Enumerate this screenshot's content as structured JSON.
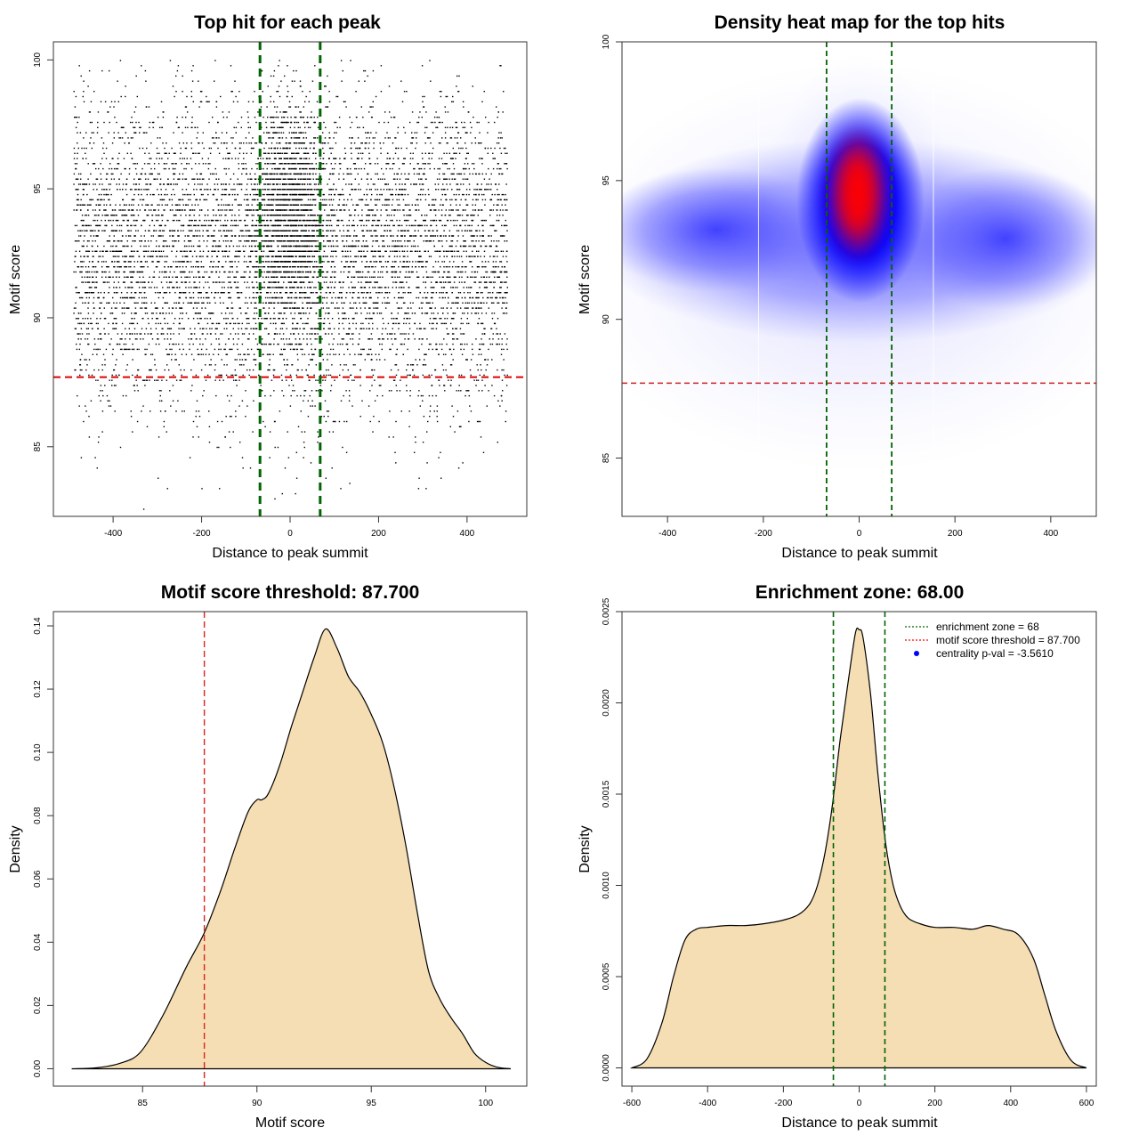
{
  "chart_data": [
    {
      "type": "scatter",
      "title": "Top hit for each peak",
      "xlabel": "Distance to peak summit",
      "ylabel": "Motif score",
      "xlim": [
        -535,
        535
      ],
      "ylim": [
        82.3,
        100.7
      ],
      "xticks": [
        -400,
        -200,
        0,
        200,
        400
      ],
      "yticks": [
        85,
        90,
        95,
        100
      ],
      "threshold": 87.7,
      "zone": 68,
      "n_points": 9000
    },
    {
      "type": "heatmap",
      "title": "Density heat map for the top hits",
      "xlabel": "Distance to peak summit",
      "ylabel": "Motif score",
      "xlim": [
        -495,
        495
      ],
      "ylim": [
        82.9,
        100
      ],
      "xticks": [
        -400,
        -200,
        0,
        200,
        400
      ],
      "yticks": [
        85,
        90,
        95,
        100
      ],
      "threshold": 87.7,
      "zone": 68,
      "white_lines_x": [
        -210,
        155
      ],
      "colors": {
        "low": "#ffffff",
        "mid": "#0000ff",
        "high": "#ff0000"
      }
    },
    {
      "type": "area",
      "title": "Motif score threshold: 87.700",
      "xlabel": "Motif score",
      "ylabel": "Density",
      "xlim": [
        81.1,
        101.8
      ],
      "ylim": [
        -0.0055,
        0.1445
      ],
      "xticks": [
        85,
        90,
        95,
        100
      ],
      "yticks": [
        0.0,
        0.02,
        0.04,
        0.06,
        0.08,
        0.1,
        0.12,
        0.14
      ],
      "ytick_labels": [
        "0.00",
        "0.02",
        "0.04",
        "0.06",
        "0.08",
        "0.10",
        "0.12",
        "0.14"
      ],
      "threshold": 87.7,
      "fill": "#f5deb3",
      "x": [
        81.9,
        83.0,
        84.0,
        84.9,
        85.9,
        86.9,
        87.7,
        88.4,
        89.0,
        89.6,
        90.0,
        90.2,
        90.5,
        91.0,
        91.5,
        92.0,
        92.5,
        93.0,
        93.5,
        94.0,
        94.5,
        95.0,
        95.5,
        96.0,
        96.5,
        97.0,
        97.5,
        98.0,
        98.5,
        99.0,
        99.5,
        100.0,
        100.5,
        101.1
      ],
      "values": [
        0.0,
        0.0003,
        0.0017,
        0.0052,
        0.017,
        0.032,
        0.043,
        0.056,
        0.069,
        0.081,
        0.085,
        0.085,
        0.087,
        0.096,
        0.108,
        0.119,
        0.13,
        0.139,
        0.133,
        0.124,
        0.119,
        0.112,
        0.103,
        0.089,
        0.071,
        0.05,
        0.031,
        0.022,
        0.016,
        0.011,
        0.005,
        0.002,
        0.0005,
        0.0
      ]
    },
    {
      "type": "area",
      "title": "Enrichment zone: 68.00",
      "xlabel": "Distance to peak summit",
      "ylabel": "Density",
      "xlim": [
        -626,
        626
      ],
      "ylim": [
        -0.0001,
        0.0025
      ],
      "xticks": [
        -600,
        -400,
        -200,
        0,
        200,
        400,
        600
      ],
      "yticks": [
        0.0,
        0.0005,
        0.001,
        0.0015,
        0.002,
        0.0025
      ],
      "ytick_labels": [
        "0.0000",
        "0.0005",
        "0.0010",
        "0.0015",
        "0.0020",
        "0.0025"
      ],
      "zone": 68,
      "fill": "#f5deb3",
      "x": [
        -600,
        -560,
        -520,
        -490,
        -460,
        -430,
        -400,
        -350,
        -300,
        -250,
        -200,
        -160,
        -130,
        -110,
        -90,
        -70,
        -50,
        -30,
        -10,
        0,
        10,
        30,
        50,
        70,
        90,
        110,
        130,
        160,
        200,
        250,
        300,
        340,
        380,
        420,
        460,
        490,
        520,
        560,
        600
      ],
      "values": [
        0.0,
        5e-05,
        0.00025,
        0.0005,
        0.0007,
        0.00076,
        0.00077,
        0.00078,
        0.00078,
        0.00079,
        0.00081,
        0.00084,
        0.0009,
        0.001,
        0.00118,
        0.00145,
        0.0018,
        0.0021,
        0.00238,
        0.0024,
        0.00236,
        0.00205,
        0.0016,
        0.00123,
        0.001,
        0.00088,
        0.00082,
        0.00079,
        0.00077,
        0.00077,
        0.00076,
        0.00078,
        0.00076,
        0.00073,
        0.0006,
        0.0004,
        0.0002,
        4e-05,
        0.0
      ],
      "legend": {
        "placement": "top-right",
        "entries": [
          {
            "label": "enrichment zone = 68",
            "color": "#006400",
            "style": "dotted-line"
          },
          {
            "label": "motif score threshold = 87.700",
            "color": "#ff0000",
            "style": "dotted-line"
          },
          {
            "label": "centrality p-val = -3.5610",
            "color": "#0000ff",
            "style": "point"
          }
        ]
      }
    }
  ]
}
